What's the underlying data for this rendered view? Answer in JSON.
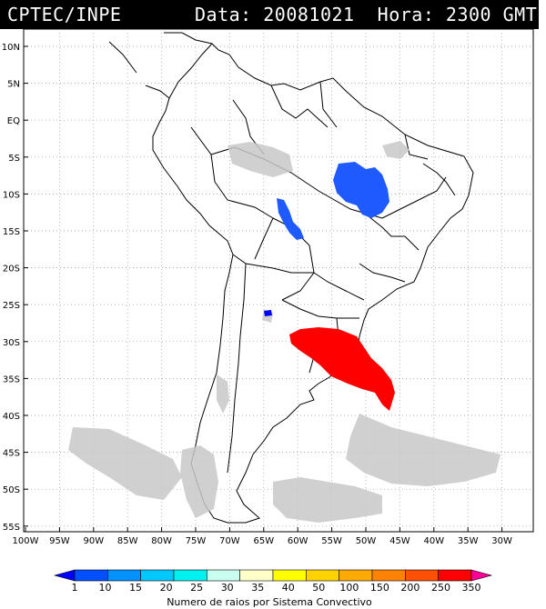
{
  "header": {
    "agency": "CPTEC/INPE",
    "datetime": "Data: 20081021  Hora: 2300 GMT"
  },
  "map": {
    "lat_labels": [
      "10N",
      "5N",
      "EQ",
      "5S",
      "10S",
      "15S",
      "20S",
      "25S",
      "30S",
      "35S",
      "40S",
      "45S",
      "50S",
      "55S"
    ],
    "lon_labels": [
      "100W",
      "95W",
      "90W",
      "85W",
      "80W",
      "75W",
      "70W",
      "65W",
      "60W",
      "55W",
      "50W",
      "45W",
      "40W",
      "35W",
      "30W"
    ],
    "lat_range": [
      -56,
      12
    ],
    "lon_range": [
      -100,
      -28
    ]
  },
  "colorbar": {
    "ticks": [
      "1",
      "10",
      "15",
      "20",
      "25",
      "30",
      "35",
      "40",
      "50",
      "100",
      "150",
      "200",
      "250",
      "350"
    ],
    "colors": [
      "#0000ff",
      "#0050ff",
      "#0090ff",
      "#00c8ff",
      "#00f0f0",
      "#c8fff0",
      "#ffffc8",
      "#ffff00",
      "#ffd200",
      "#ffaa00",
      "#ff8200",
      "#ff5000",
      "#ff0000",
      "#ff0096"
    ],
    "title": "Numero de raios por Sistema Convectivo"
  }
}
